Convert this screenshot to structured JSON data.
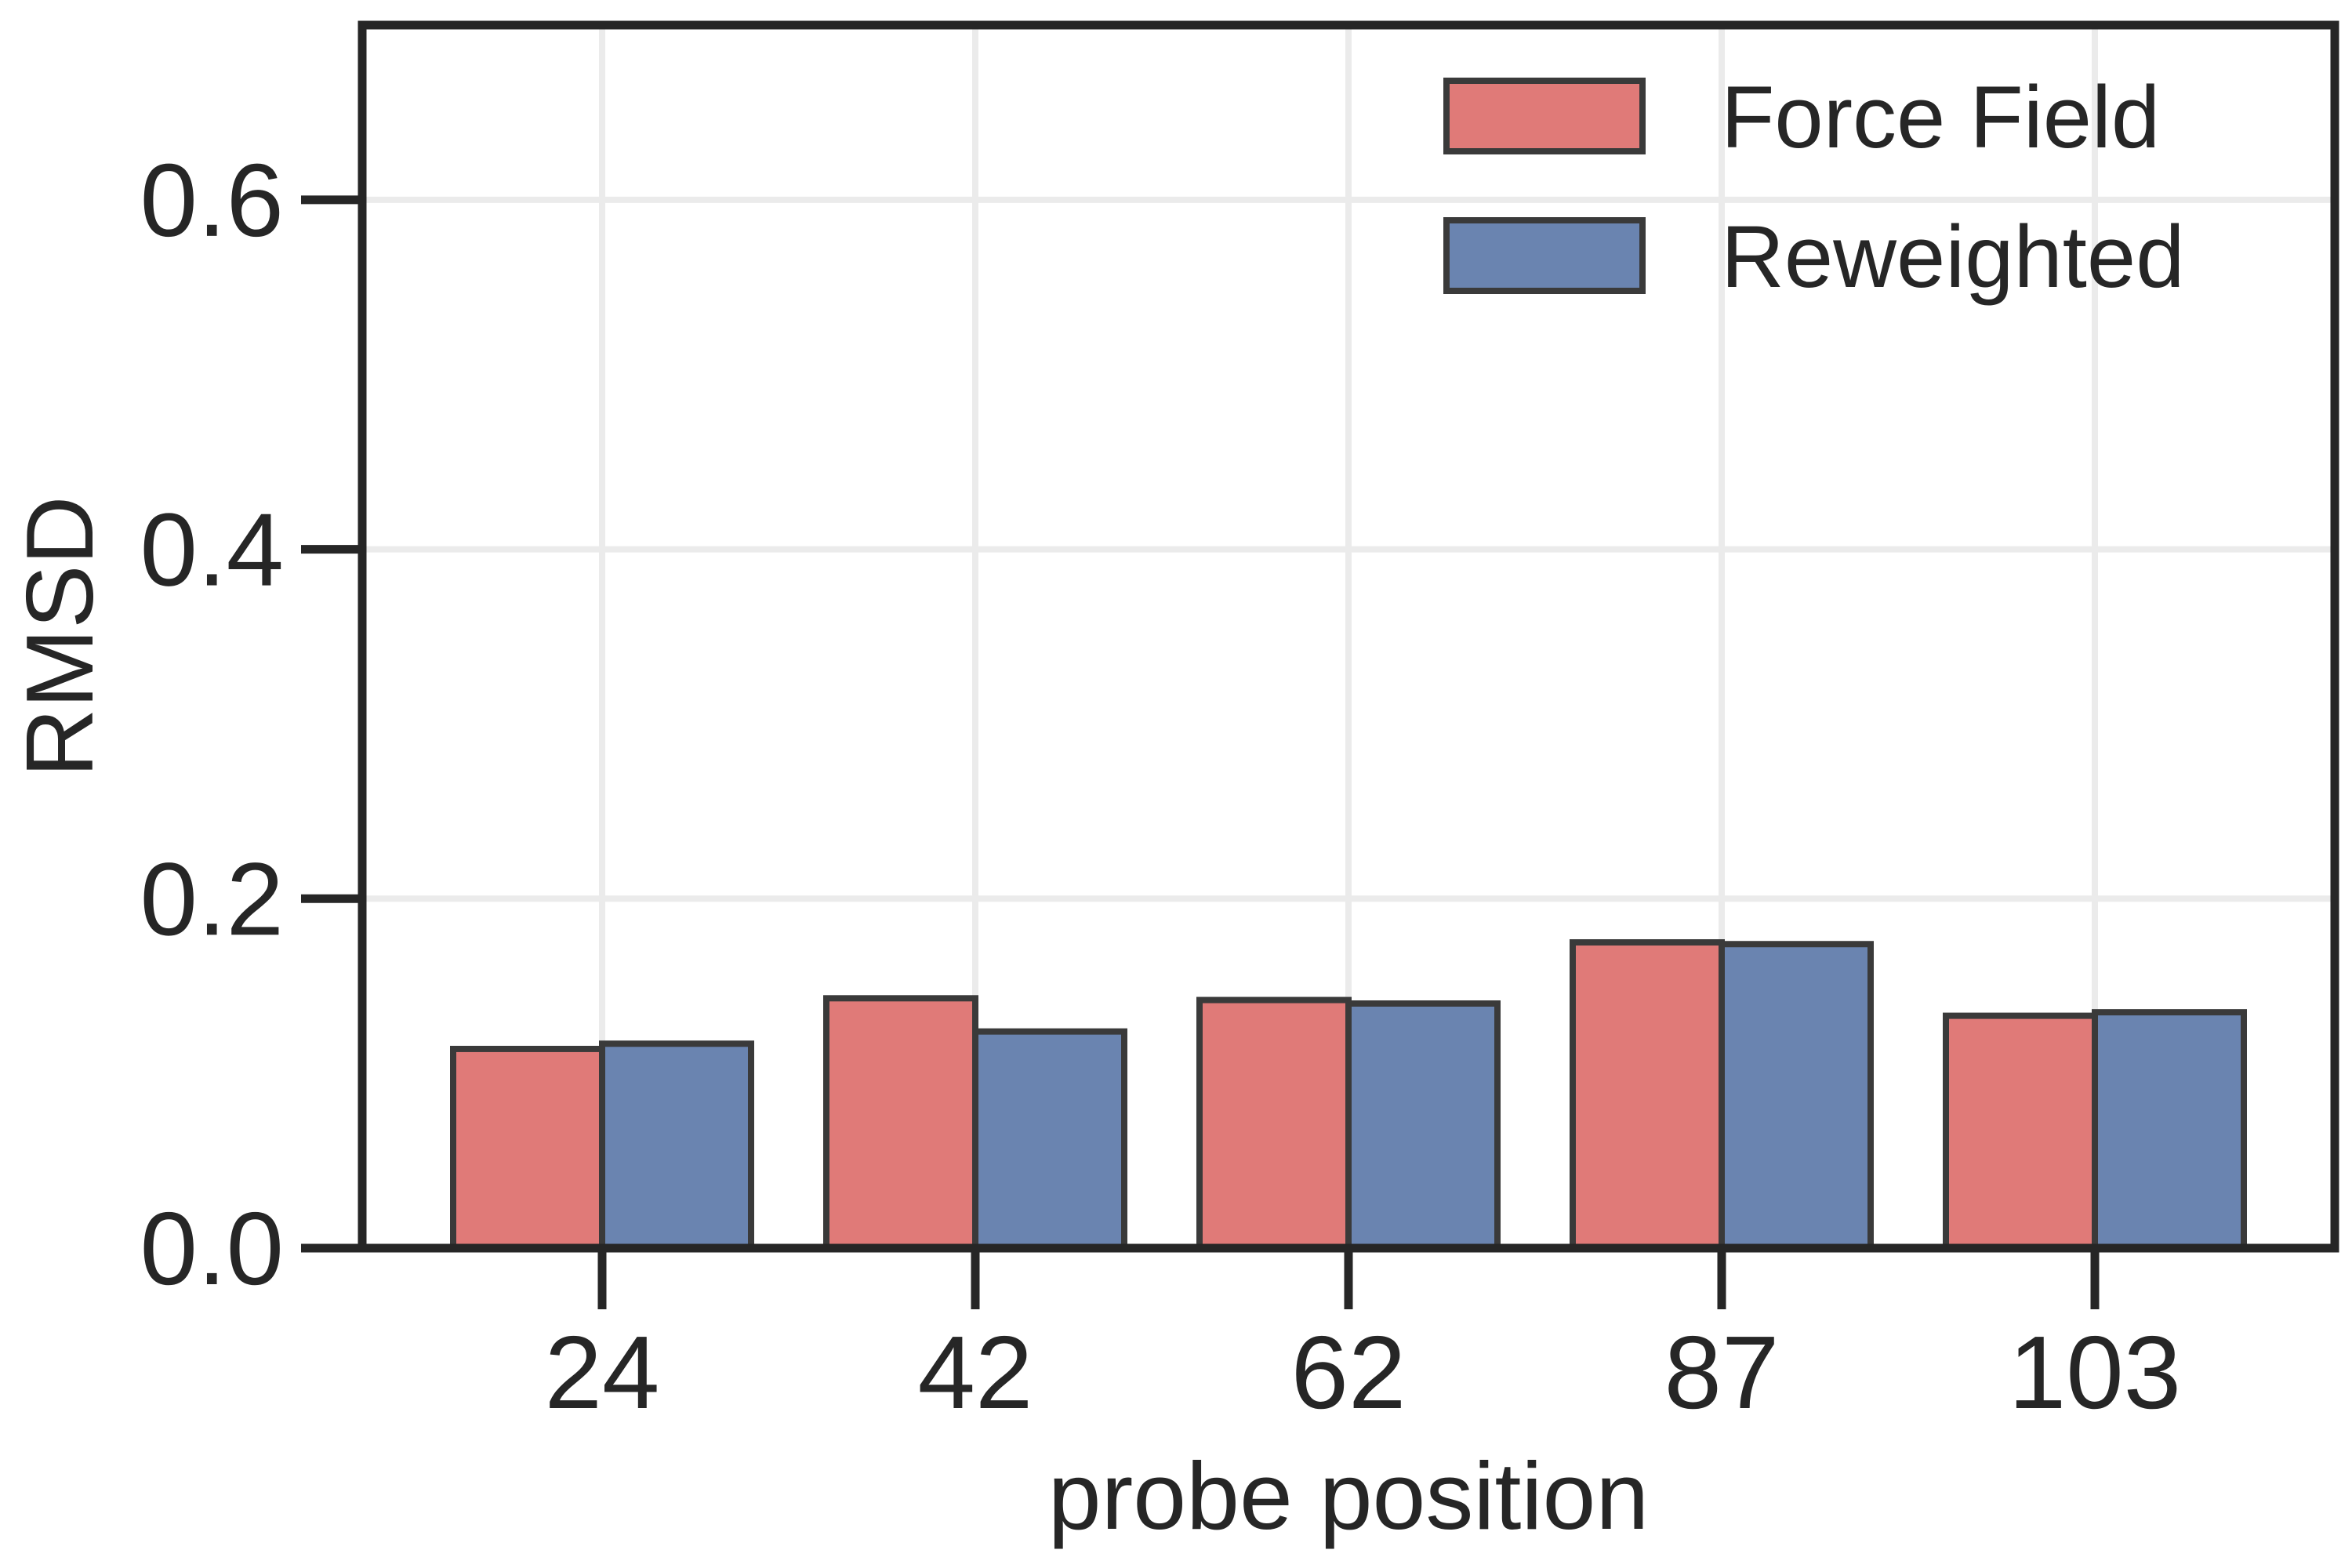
{
  "chart_data": {
    "type": "bar",
    "xlabel": "probe position",
    "ylabel": "RMSD",
    "categories": [
      "24",
      "42",
      "62",
      "87",
      "103"
    ],
    "series": [
      {
        "name": "Force Field",
        "color": "#e07a78",
        "values": [
          0.114,
          0.143,
          0.142,
          0.175,
          0.133
        ]
      },
      {
        "name": "Reweighted",
        "color": "#6a84b0",
        "values": [
          0.117,
          0.124,
          0.14,
          0.174,
          0.135
        ]
      }
    ],
    "ylim": [
      0,
      0.7
    ],
    "yticks": [
      0.0,
      0.2,
      0.4,
      0.6
    ],
    "ytick_labels": [
      "0.0",
      "0.2",
      "0.4",
      "0.6"
    ],
    "grid": true,
    "legend_position": "top-right",
    "colors": {
      "axis": "#262626",
      "grid": "#ebebeb",
      "bar_edge": "#3a3a3a"
    }
  }
}
